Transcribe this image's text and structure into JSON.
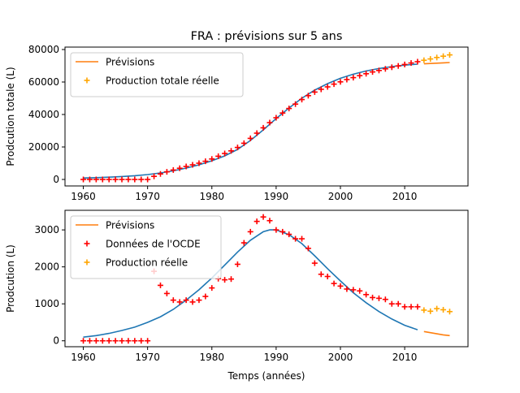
{
  "figure": {
    "title": "FRA : prévisions sur 5 ans"
  },
  "colors": {
    "model": "#1f77b4",
    "forecast": "#ff7f0e",
    "oecd": "#ff0000",
    "actual": "#ffa500"
  },
  "chart_data": [
    {
      "type": "line",
      "title": "FRA : prévisions sur 5 ans",
      "xlabel": "",
      "ylabel": "Prodcution totale (L)",
      "xlim": [
        1957.15,
        2019.85
      ],
      "ylim": [
        -4000,
        81500
      ],
      "xticks": [
        1960,
        1970,
        1980,
        1990,
        2000,
        2010
      ],
      "yticks": [
        0,
        20000,
        40000,
        60000,
        80000
      ],
      "grid": false,
      "legend_position": "top-left",
      "legend": [
        {
          "label": "Prévisions",
          "kind": "line",
          "series": "forecast"
        },
        {
          "label": "Production totale réelle",
          "kind": "marker",
          "series": "actual"
        }
      ],
      "series": [
        {
          "key": "model",
          "kind": "line",
          "color_key": "model",
          "x": [
            1960,
            1962,
            1964,
            1966,
            1968,
            1970,
            1972,
            1974,
            1976,
            1978,
            1980,
            1982,
            1984,
            1986,
            1988,
            1990,
            1992,
            1994,
            1996,
            1998,
            2000,
            2002,
            2004,
            2006,
            2008,
            2010,
            2012
          ],
          "y": [
            900,
            1100,
            1400,
            1800,
            2300,
            3000,
            4000,
            5300,
            7000,
            9000,
            11500,
            14500,
            18500,
            24000,
            30500,
            37500,
            44000,
            50000,
            55000,
            59000,
            62300,
            64800,
            66800,
            68300,
            69500,
            70400,
            71000
          ]
        },
        {
          "key": "forecast",
          "kind": "line",
          "color_key": "forecast",
          "x": [
            2013,
            2014,
            2015,
            2016,
            2017
          ],
          "y": [
            71200,
            71400,
            71600,
            71800,
            72000
          ]
        },
        {
          "key": "oecd",
          "kind": "marker",
          "color_key": "oecd",
          "x": [
            1960,
            1961,
            1962,
            1963,
            1964,
            1965,
            1966,
            1967,
            1968,
            1969,
            1970,
            1971,
            1972,
            1973,
            1974,
            1975,
            1976,
            1977,
            1978,
            1979,
            1980,
            1981,
            1982,
            1983,
            1984,
            1985,
            1986,
            1987,
            1988,
            1989,
            1990,
            1991,
            1992,
            1993,
            1994,
            1995,
            1996,
            1997,
            1998,
            1999,
            2000,
            2001,
            2002,
            2003,
            2004,
            2005,
            2006,
            2007,
            2008,
            2009,
            2010,
            2011,
            2012
          ],
          "y": [
            0,
            0,
            0,
            0,
            0,
            0,
            0,
            0,
            0,
            0,
            0,
            1900,
            3400,
            4700,
            5800,
            6900,
            8000,
            9000,
            10000,
            11200,
            12600,
            14300,
            16000,
            17600,
            19700,
            22300,
            25300,
            28500,
            31800,
            35000,
            38000,
            40900,
            43700,
            46400,
            49200,
            51600,
            53800,
            55500,
            57000,
            58700,
            60100,
            61500,
            62700,
            63900,
            65100,
            66200,
            67100,
            68100,
            69100,
            69900,
            70800,
            71700,
            72500
          ]
        },
        {
          "key": "actual",
          "kind": "marker",
          "color_key": "actual",
          "x": [
            2013,
            2014,
            2015,
            2016,
            2017
          ],
          "y": [
            73400,
            74200,
            75100,
            75900,
            76700
          ]
        }
      ]
    },
    {
      "type": "line",
      "title": "",
      "xlabel": "Temps (années)",
      "ylabel": "Prodcution (L)",
      "xlim": [
        1957.15,
        2019.85
      ],
      "ylim": [
        -160,
        3530
      ],
      "xticks": [
        1960,
        1970,
        1980,
        1990,
        2000,
        2010
      ],
      "yticks": [
        0,
        1000,
        2000,
        3000
      ],
      "grid": false,
      "legend_position": "top-left",
      "legend": [
        {
          "label": "Prévisions",
          "kind": "line",
          "series": "forecast"
        },
        {
          "label": "Données de l'OCDE",
          "kind": "marker",
          "series": "oecd"
        },
        {
          "label": "Production réelle",
          "kind": "marker",
          "series": "actual"
        }
      ],
      "series": [
        {
          "key": "model",
          "kind": "line",
          "color_key": "model",
          "x": [
            1960,
            1962,
            1964,
            1966,
            1968,
            1970,
            1972,
            1974,
            1976,
            1978,
            1980,
            1982,
            1984,
            1986,
            1988,
            1989,
            1990,
            1992,
            1994,
            1996,
            1998,
            2000,
            2002,
            2004,
            2006,
            2008,
            2010,
            2012
          ],
          "y": [
            100,
            140,
            200,
            280,
            370,
            500,
            650,
            850,
            1100,
            1380,
            1700,
            2050,
            2400,
            2720,
            2950,
            3000,
            3000,
            2870,
            2630,
            2300,
            1950,
            1620,
            1300,
            1030,
            790,
            590,
            420,
            300
          ]
        },
        {
          "key": "forecast",
          "kind": "line",
          "color_key": "forecast",
          "x": [
            2013,
            2014,
            2015,
            2016,
            2017
          ],
          "y": [
            250,
            220,
            190,
            160,
            140
          ]
        },
        {
          "key": "oecd",
          "kind": "marker",
          "color_key": "oecd",
          "x": [
            1960,
            1961,
            1962,
            1963,
            1964,
            1965,
            1966,
            1967,
            1968,
            1969,
            1970,
            1971,
            1972,
            1973,
            1974,
            1975,
            1976,
            1977,
            1978,
            1979,
            1980,
            1981,
            1982,
            1983,
            1984,
            1985,
            1986,
            1987,
            1988,
            1989,
            1990,
            1991,
            1992,
            1993,
            1994,
            1995,
            1996,
            1997,
            1998,
            1999,
            2000,
            2001,
            2002,
            2003,
            2004,
            2005,
            2006,
            2007,
            2008,
            2009,
            2010,
            2011,
            2012
          ],
          "y": [
            0,
            0,
            0,
            0,
            0,
            0,
            0,
            0,
            0,
            0,
            0,
            1880,
            1500,
            1280,
            1100,
            1050,
            1100,
            1050,
            1100,
            1200,
            1430,
            1680,
            1650,
            1670,
            2070,
            2650,
            2950,
            3230,
            3350,
            3250,
            3000,
            2950,
            2880,
            2760,
            2760,
            2500,
            2100,
            1800,
            1740,
            1550,
            1480,
            1400,
            1380,
            1350,
            1250,
            1170,
            1150,
            1120,
            1000,
            1000,
            920,
            920,
            920
          ]
        },
        {
          "key": "actual",
          "kind": "marker",
          "color_key": "actual",
          "x": [
            2013,
            2014,
            2015,
            2016,
            2017
          ],
          "y": [
            830,
            800,
            870,
            840,
            790
          ]
        }
      ]
    }
  ]
}
